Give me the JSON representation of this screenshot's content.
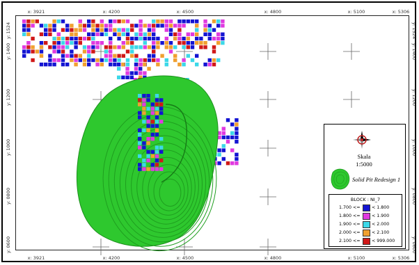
{
  "map": {
    "x_ticks": [
      "3921",
      "4200",
      "4500",
      "4800",
      "5100",
      "5306"
    ],
    "y_ticks": [
      "1524",
      "1400",
      "1200",
      "1000",
      "0800",
      "0600"
    ],
    "coord_prefix": "x:",
    "corner_tag": "y:"
  },
  "legend": {
    "scale_title": "Skala",
    "scale_value": "1:5000",
    "pit_label": "Solid Pit Redesign 1",
    "block_title": "BLOCK : NI_7",
    "pit_color": "#2ec82e",
    "entries": [
      {
        "lower": "1.700",
        "op": "<=",
        "upper": "< 1.800",
        "color": "#1414d2"
      },
      {
        "lower": "1.800",
        "op": "<=",
        "upper": "< 1.900",
        "color": "#e03ae0"
      },
      {
        "lower": "1.900",
        "op": "<=",
        "upper": "< 2.000",
        "color": "#3cd8e8"
      },
      {
        "lower": "2.000",
        "op": "<=",
        "upper": "< 2.100",
        "color": "#f0a030"
      },
      {
        "lower": "2.100",
        "op": "<=",
        "upper": "< 999.000",
        "color": "#d01818"
      }
    ]
  },
  "icons": {
    "north_arrow": "compass-north-arrow-icon",
    "pit_symbol": "solid-pit-swatch-icon"
  }
}
